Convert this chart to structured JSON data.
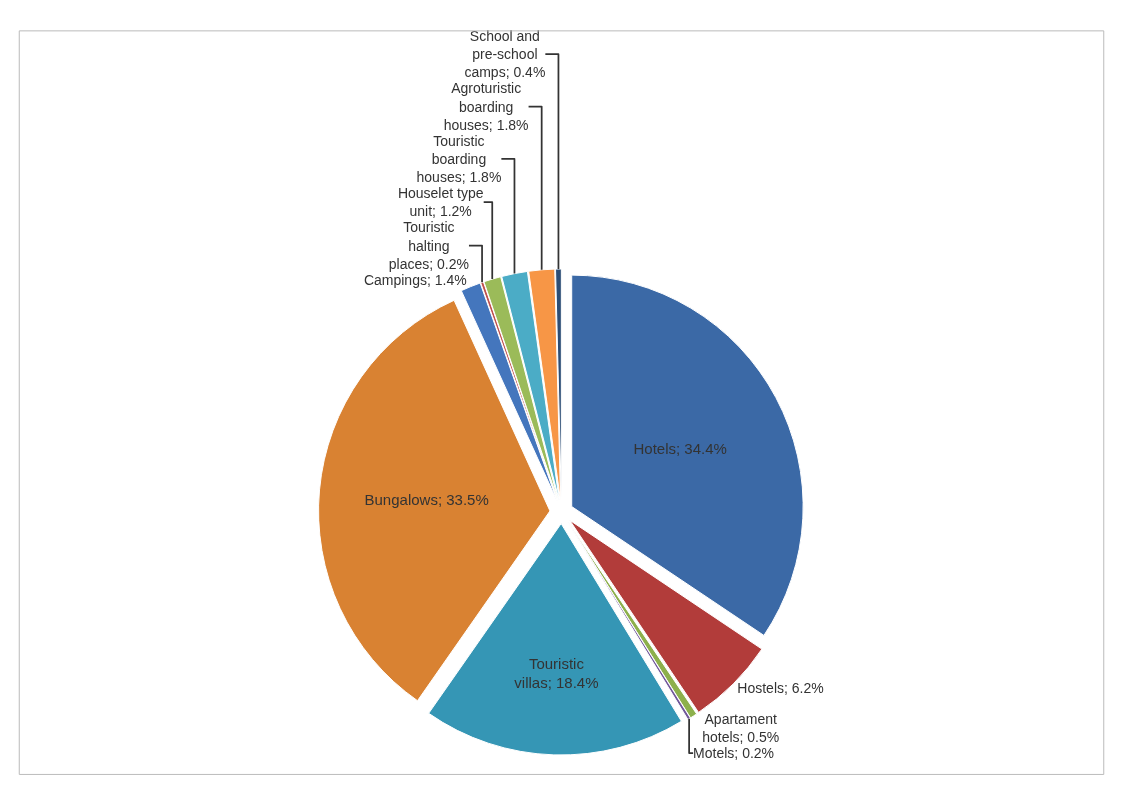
{
  "chart_data": {
    "type": "pie",
    "categories": [
      "Hotels",
      "Hostels",
      "Apartament hotels",
      "Motels",
      "Touristic villas",
      "Bungalows",
      "Campings",
      "Touristic halting places",
      "Houselet type unit",
      "Touristic boarding houses",
      "Agroturistic boarding houses",
      "School and pre-school camps"
    ],
    "values": [
      34.4,
      6.2,
      0.5,
      0.2,
      18.4,
      33.5,
      1.4,
      0.2,
      1.2,
      1.8,
      1.8,
      0.4
    ],
    "value_labels": [
      "34.4%",
      "6.2%",
      "0.5%",
      "0.2%",
      "18.4%",
      "33.5%",
      "1.4%",
      "0.2%",
      "1.2%",
      "1.8%",
      "1.8%",
      "0.4%"
    ],
    "colors": [
      "#3b69a6",
      "#b23c3a",
      "#8db04c",
      "#71589a",
      "#3596b5",
      "#d98232",
      "#4476bd",
      "#c0504d",
      "#9bbb59",
      "#4bacc6",
      "#f79646",
      "#2c4d75"
    ],
    "legend": false
  }
}
